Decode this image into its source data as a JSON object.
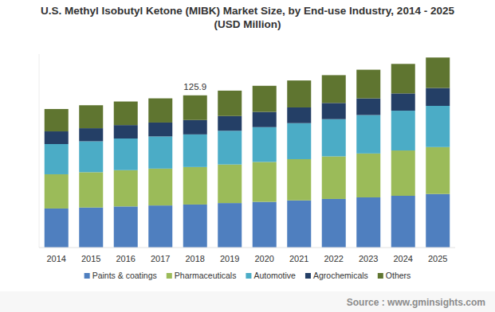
{
  "chart_data": {
    "type": "bar",
    "stacked": true,
    "title": "U.S. Methyl Isobutyl Ketone (MIBK) Market Size, by End-use Industry, 2014 - 2025",
    "subtitle": "(USD Million)",
    "categories": [
      "2014",
      "2015",
      "2016",
      "2017",
      "2018",
      "2019",
      "2020",
      "2021",
      "2022",
      "2023",
      "2024",
      "2025"
    ],
    "series": [
      {
        "name": "Paints & coatings",
        "color": "#4f7fbf",
        "values": [
          32.3,
          33.1,
          34.0,
          34.8,
          35.6,
          36.8,
          37.8,
          39.0,
          40.2,
          41.5,
          42.8,
          44.3
        ]
      },
      {
        "name": "Pharmaceuticals",
        "color": "#9bbb59",
        "values": [
          28.3,
          29.2,
          30.0,
          30.5,
          31.0,
          31.9,
          33.0,
          34.1,
          35.2,
          36.3,
          37.5,
          38.8
        ]
      },
      {
        "name": "Automotive",
        "color": "#4bacc6",
        "values": [
          25.0,
          25.6,
          26.2,
          26.6,
          27.0,
          27.9,
          28.8,
          29.8,
          30.8,
          31.8,
          32.9,
          34.1
        ]
      },
      {
        "name": "Agrochemicals",
        "color": "#243f66",
        "values": [
          10.5,
          10.8,
          11.1,
          11.5,
          11.9,
          12.2,
          12.6,
          13.0,
          13.4,
          13.8,
          14.3,
          14.8
        ]
      },
      {
        "name": "Others",
        "color": "#5f7530",
        "values": [
          18.5,
          19.0,
          19.5,
          20.0,
          20.4,
          21.0,
          21.6,
          22.3,
          23.0,
          23.7,
          24.4,
          25.2
        ]
      }
    ],
    "annotations": [
      {
        "x": "2018",
        "y": 125.9,
        "label": "125.9"
      }
    ],
    "ylim": [
      0,
      160
    ],
    "yticks": [],
    "grid": false,
    "legend": "bottom",
    "tick_labels": "x",
    "source": "Source : www.gminsights.com"
  }
}
